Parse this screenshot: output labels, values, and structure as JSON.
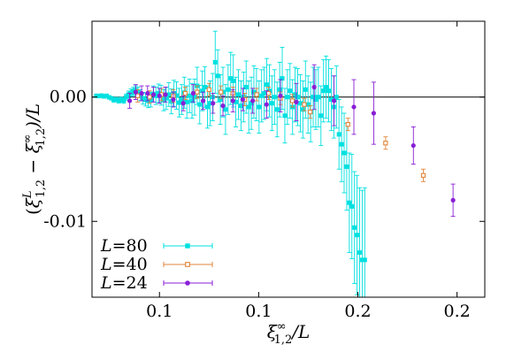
{
  "chart_data": {
    "type": "scatter",
    "title": "",
    "xlabel": "ξ∞1,2/L",
    "ylabel": "(ξL1,2 − ξ∞1,2)/L",
    "xlim": [
      0.041,
      0.239
    ],
    "ylim": [
      -0.0161,
      0.0061
    ],
    "x_ticks": [
      {
        "value": 0.075,
        "label": "0.1"
      },
      {
        "value": 0.125,
        "label": "0.1"
      },
      {
        "value": 0.175,
        "label": "0.2"
      },
      {
        "value": 0.225,
        "label": "0.2"
      }
    ],
    "y_ticks": [
      {
        "value": 0.0,
        "label": "0.00"
      },
      {
        "value": -0.01,
        "label": "-0.01"
      }
    ],
    "zero_line": true,
    "legend_position": "bottom-left",
    "series": [
      {
        "name": "L=80",
        "name_italic": "L",
        "name_rest": "=80",
        "color": "#00e0e0",
        "marker": "filled-square",
        "points": [
          [
            0.0432,
            0.0001,
            6e-05
          ],
          [
            0.0445,
            8e-05,
            7e-05
          ],
          [
            0.0458,
            0.00012,
            8e-05
          ],
          [
            0.047,
            5e-05,
            9e-05
          ],
          [
            0.0483,
            0.0001,
            0.0001
          ],
          [
            0.0496,
            -2e-05,
            0.00012
          ],
          [
            0.0508,
            -0.0001,
            0.00013
          ],
          [
            0.052,
            -0.00025,
            0.00015
          ],
          [
            0.0532,
            -0.00018,
            0.00016
          ],
          [
            0.0545,
            -0.0003,
            0.00018
          ],
          [
            0.0557,
            -0.0002,
            0.0002
          ],
          [
            0.057,
            -0.00028,
            0.00022
          ],
          [
            0.0582,
            0.0,
            0.00025
          ],
          [
            0.0594,
            0.0002,
            0.00028
          ],
          [
            0.0606,
            0.00035,
            0.0003
          ],
          [
            0.0618,
            0.00045,
            0.00033
          ],
          [
            0.063,
            0.00055,
            0.00036
          ],
          [
            0.0642,
            0.0004,
            0.0004
          ],
          [
            0.0654,
            0.00015,
            0.00043
          ],
          [
            0.0667,
            -0.0001,
            0.00047
          ],
          [
            0.068,
            -0.00022,
            0.0005
          ],
          [
            0.0693,
            -0.0003,
            0.00055
          ],
          [
            0.0706,
            -0.0002,
            0.0006
          ],
          [
            0.0719,
            0.00025,
            0.00065
          ],
          [
            0.0732,
            0.0001,
            0.0007
          ],
          [
            0.0745,
            0.0003,
            0.00075
          ],
          [
            0.0758,
            0.00015,
            0.0008
          ],
          [
            0.0771,
            -0.00025,
            0.00085
          ],
          [
            0.0784,
            -0.0001,
            0.0009
          ],
          [
            0.0797,
            0.0002,
            0.00095
          ],
          [
            0.081,
            -0.00035,
            0.001
          ],
          [
            0.0823,
            0.0003,
            0.00105
          ],
          [
            0.0836,
            0.00012,
            0.0011
          ],
          [
            0.0849,
            -0.00045,
            0.00115
          ],
          [
            0.0862,
            -0.0002,
            0.0012
          ],
          [
            0.0875,
            0.00035,
            0.00125
          ],
          [
            0.0888,
            -0.0004,
            0.0013
          ],
          [
            0.0901,
            0.0001,
            0.00135
          ],
          [
            0.0914,
            -0.0003,
            0.0014
          ],
          [
            0.0927,
            0.0,
            0.00145
          ],
          [
            0.094,
            0.0009,
            0.0015
          ],
          [
            0.0953,
            -0.0006,
            0.00155
          ],
          [
            0.0966,
            0.0005,
            0.0016
          ],
          [
            0.0979,
            0.0008,
            0.00165
          ],
          [
            0.0992,
            -0.0008,
            0.0017
          ],
          [
            0.1005,
            -0.0005,
            0.0018
          ],
          [
            0.1018,
            0.0,
            0.0019
          ],
          [
            0.1031,
            0.0028,
            0.0025
          ],
          [
            0.1044,
            0.0017,
            0.0021
          ],
          [
            0.1057,
            -0.0002,
            0.002
          ],
          [
            0.107,
            0.0004,
            0.002
          ],
          [
            0.1083,
            -0.001,
            0.002
          ],
          [
            0.1096,
            0.0006,
            0.002
          ],
          [
            0.1109,
            0.0015,
            0.0021
          ],
          [
            0.1122,
            0.0013,
            0.0021
          ],
          [
            0.1135,
            -0.0004,
            0.002
          ],
          [
            0.1148,
            0.0002,
            0.002
          ],
          [
            0.1161,
            -0.0007,
            0.002
          ],
          [
            0.1174,
            0.0,
            0.002
          ],
          [
            0.1187,
            0.0008,
            0.0021
          ],
          [
            0.12,
            -0.0008,
            0.0021
          ],
          [
            0.1213,
            -0.0005,
            0.0021
          ],
          [
            0.1226,
            0.0004,
            0.0021
          ],
          [
            0.1239,
            0.0002,
            0.0021
          ],
          [
            0.1252,
            -0.0008,
            0.0021
          ],
          [
            0.1265,
            0.0001,
            0.0021
          ],
          [
            0.1278,
            0.0003,
            0.0021
          ],
          [
            0.1291,
            0.001,
            0.0021
          ],
          [
            0.1304,
            0.0005,
            0.0021
          ],
          [
            0.1317,
            -0.0005,
            0.0022
          ],
          [
            0.133,
            0.0,
            0.0022
          ],
          [
            0.1343,
            -0.001,
            0.0022
          ],
          [
            0.1356,
            0.0006,
            0.0022
          ],
          [
            0.1369,
            0.0015,
            0.0025
          ],
          [
            0.1382,
            -0.0015,
            0.0022
          ],
          [
            0.1395,
            0.0,
            0.0022
          ],
          [
            0.1408,
            0.0005,
            0.0022
          ],
          [
            0.1421,
            -0.0008,
            0.0022
          ],
          [
            0.1434,
            0.0002,
            0.0022
          ],
          [
            0.1447,
            0.0,
            0.0023
          ],
          [
            0.146,
            -0.0005,
            0.0023
          ],
          [
            0.1473,
            -0.001,
            0.0023
          ],
          [
            0.1486,
            0.0006,
            0.0023
          ],
          [
            0.1499,
            -0.0006,
            0.0023
          ],
          [
            0.1512,
            -0.0012,
            0.0024
          ],
          [
            0.1525,
            0.0,
            0.0024
          ],
          [
            0.1538,
            -0.0002,
            0.0024
          ],
          [
            0.1551,
            0.0,
            0.0024
          ],
          [
            0.1564,
            -0.0015,
            0.0024
          ],
          [
            0.1577,
            0.0005,
            0.0025
          ],
          [
            0.159,
            0.0008,
            0.0025
          ],
          [
            0.1603,
            0.0005,
            0.0025
          ],
          [
            0.1616,
            -0.0002,
            0.0025
          ],
          [
            0.1629,
            -0.0008,
            0.0025
          ],
          [
            0.1642,
            0.0,
            0.0025
          ],
          [
            0.1655,
            -0.003,
            0.0028
          ],
          [
            0.1668,
            -0.0038,
            0.003
          ],
          [
            0.1681,
            -0.0045,
            0.0032
          ],
          [
            0.1694,
            -0.0056,
            0.0035
          ],
          [
            0.1707,
            -0.0085,
            0.004
          ],
          [
            0.172,
            -0.0088,
            0.0042
          ],
          [
            0.1733,
            -0.0105,
            0.0045
          ],
          [
            0.1746,
            -0.0111,
            0.0048
          ],
          [
            0.1759,
            -0.0125,
            0.0052
          ],
          [
            0.1772,
            -0.0131,
            0.0056
          ],
          [
            0.1785,
            -0.0131,
            0.0058
          ]
        ]
      },
      {
        "name": "L=40",
        "name_italic": "L",
        "name_rest": "=40",
        "color": "#e0853a",
        "marker": "open-square",
        "points": [
          [
            0.064,
            0.0001,
            0.0005
          ],
          [
            0.07,
            0.0,
            0.0005
          ],
          [
            0.076,
            0.0002,
            0.0005
          ],
          [
            0.082,
            0.0001,
            0.0005
          ],
          [
            0.088,
            0.0003,
            0.0005
          ],
          [
            0.094,
            0.0004,
            0.0005
          ],
          [
            0.1,
            0.0006,
            0.0005
          ],
          [
            0.106,
            0.0004,
            0.0005
          ],
          [
            0.112,
            0.0003,
            0.0005
          ],
          [
            0.118,
            -0.0002,
            0.0005
          ],
          [
            0.124,
            0.0002,
            0.0005
          ],
          [
            0.13,
            0.0003,
            0.0005
          ],
          [
            0.136,
            -0.0001,
            0.0005
          ],
          [
            0.142,
            -0.0003,
            0.0005
          ],
          [
            0.148,
            -0.0006,
            0.0005
          ],
          [
            0.151,
            -0.0012,
            0.0005
          ],
          [
            0.17,
            -0.0022,
            0.0005
          ],
          [
            0.189,
            -0.0037,
            0.0005
          ],
          [
            0.208,
            -0.0063,
            0.0005
          ]
        ]
      },
      {
        "name": "L=24",
        "name_italic": "L",
        "name_rest": "=24",
        "color": "#8a1fd6",
        "marker": "filled-circle",
        "points": [
          [
            0.06,
            -0.0003,
            0.0006
          ],
          [
            0.063,
            0.0004,
            0.0006
          ],
          [
            0.066,
            0.0003,
            0.0006
          ],
          [
            0.069,
            0.0003,
            0.0006
          ],
          [
            0.072,
            0.0002,
            0.0006
          ],
          [
            0.075,
            0.0001,
            0.0006
          ],
          [
            0.078,
            0.0002,
            0.0006
          ],
          [
            0.082,
            -0.0002,
            0.0006
          ],
          [
            0.087,
            -0.0005,
            0.0006
          ],
          [
            0.092,
            0.0003,
            0.0007
          ],
          [
            0.097,
            -0.0003,
            0.0007
          ],
          [
            0.102,
            -0.0005,
            0.0008
          ],
          [
            0.107,
            -0.0007,
            0.0008
          ],
          [
            0.112,
            -0.0003,
            0.0009
          ],
          [
            0.117,
            -0.0002,
            0.0009
          ],
          [
            0.122,
            -0.0003,
            0.001
          ],
          [
            0.129,
            -0.0006,
            0.0011
          ],
          [
            0.136,
            0.0001,
            0.0013
          ],
          [
            0.144,
            -0.0004,
            0.0015
          ],
          [
            0.153,
            0.0008,
            0.0018
          ],
          [
            0.163,
            -0.0003,
            0.002
          ],
          [
            0.173,
            -0.0008,
            0.0022
          ],
          [
            0.183,
            -0.0013,
            0.0025
          ],
          [
            0.203,
            -0.0039,
            0.0015
          ],
          [
            0.223,
            -0.0083,
            0.0013
          ]
        ]
      }
    ]
  }
}
